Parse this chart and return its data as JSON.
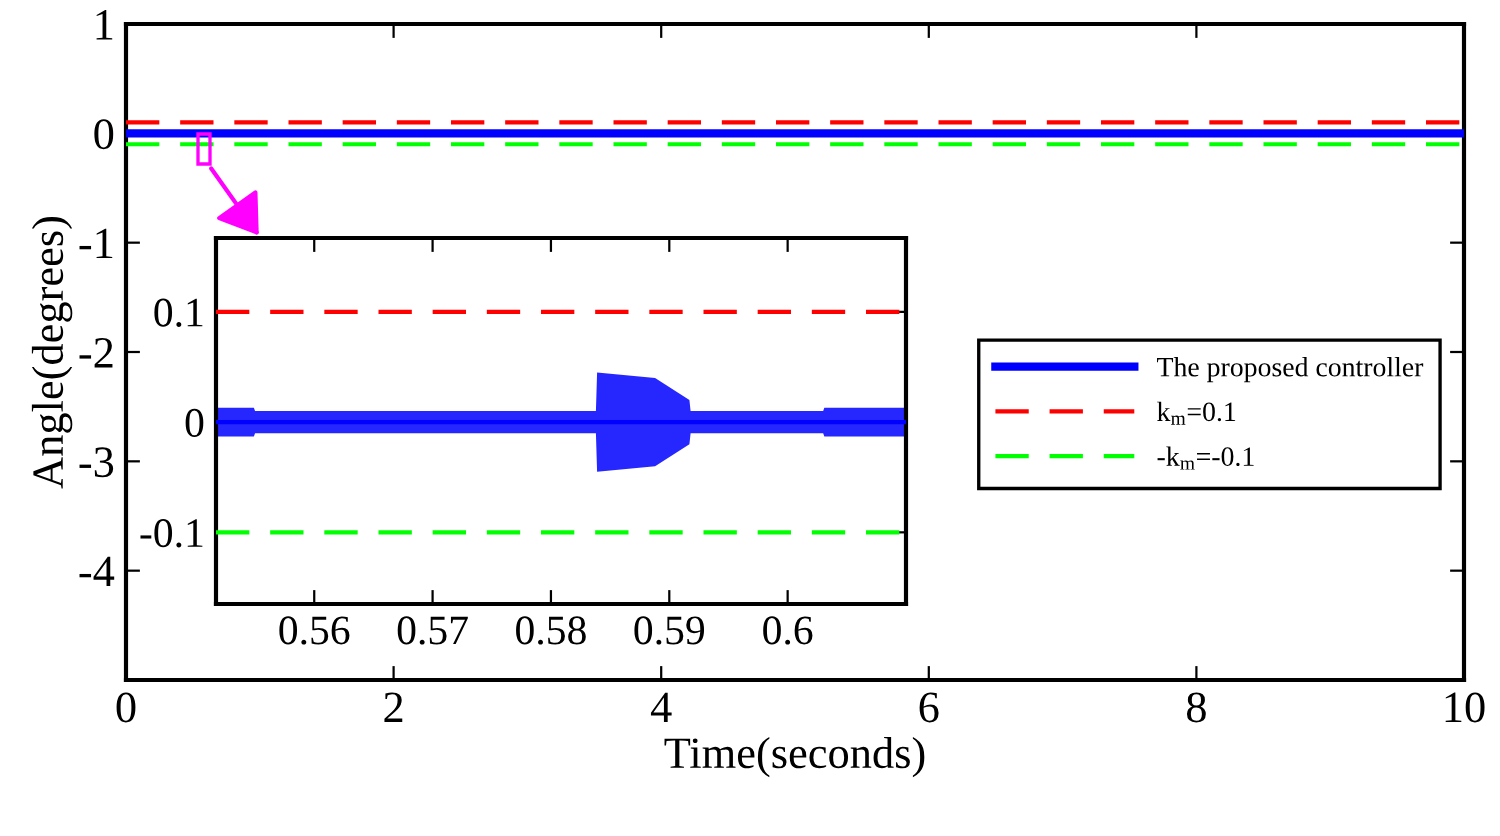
{
  "chart_data": [
    {
      "type": "line",
      "xlabel": "Time(seconds)",
      "ylabel": "Angle(degrees)",
      "xlim": [
        0,
        10
      ],
      "ylim": [
        -5,
        1
      ],
      "xticks": [
        0,
        2,
        4,
        6,
        8,
        10
      ],
      "yticks": [
        1,
        0,
        -1,
        -2,
        -3,
        -4
      ],
      "grid": false,
      "legend": "right",
      "series": [
        {
          "name": "The proposed controller",
          "color": "#0000ff",
          "line_style": "solid",
          "x": [
            0,
            10
          ],
          "values": [
            0,
            0
          ]
        },
        {
          "name": "k$_{m}$=0.1",
          "color": "#ff0000",
          "line_style": "dashed",
          "x": [
            0,
            10
          ],
          "values": [
            0.1,
            0.1
          ]
        },
        {
          "name": "-k$_{m}$=-0.1",
          "color": "#00ff00",
          "line_style": "dashed",
          "x": [
            0,
            10
          ],
          "values": [
            -0.1,
            -0.1
          ]
        }
      ]
    },
    {
      "type": "line",
      "xlim": [
        0.5517,
        0.61
      ],
      "ylim": [
        -0.165,
        0.167
      ],
      "xticks": [
        0.56,
        0.57,
        0.58,
        0.59,
        0.6
      ],
      "yticks": [
        0.1,
        0,
        -0.1
      ],
      "grid": false,
      "series": [
        {
          "color": "#0000ff",
          "line_style": "solid",
          "x": [
            0.5517,
            0.5549,
            0.555,
            0.5838,
            0.5839,
            0.5888,
            0.5917,
            0.5918,
            0.603,
            0.6031,
            0.61
          ],
          "values": [
            0,
            0,
            0,
            0,
            0,
            0,
            0,
            0,
            0,
            0,
            0
          ],
          "lower": [
            -0.013,
            -0.013,
            -0.01,
            -0.01,
            -0.045,
            -0.04,
            -0.02,
            -0.01,
            -0.01,
            -0.013,
            -0.013
          ],
          "upper": [
            0.013,
            0.013,
            0.01,
            0.01,
            0.045,
            0.04,
            0.02,
            0.01,
            0.01,
            0.013,
            0.013
          ]
        },
        {
          "color": "#ff0000",
          "line_style": "dashed",
          "x": [
            0.5517,
            0.61
          ],
          "values": [
            0.1,
            0.1
          ]
        },
        {
          "color": "#00ff00",
          "line_style": "dashed",
          "x": [
            0.5517,
            0.61
          ],
          "values": [
            -0.1,
            -0.1
          ]
        }
      ]
    }
  ]
}
